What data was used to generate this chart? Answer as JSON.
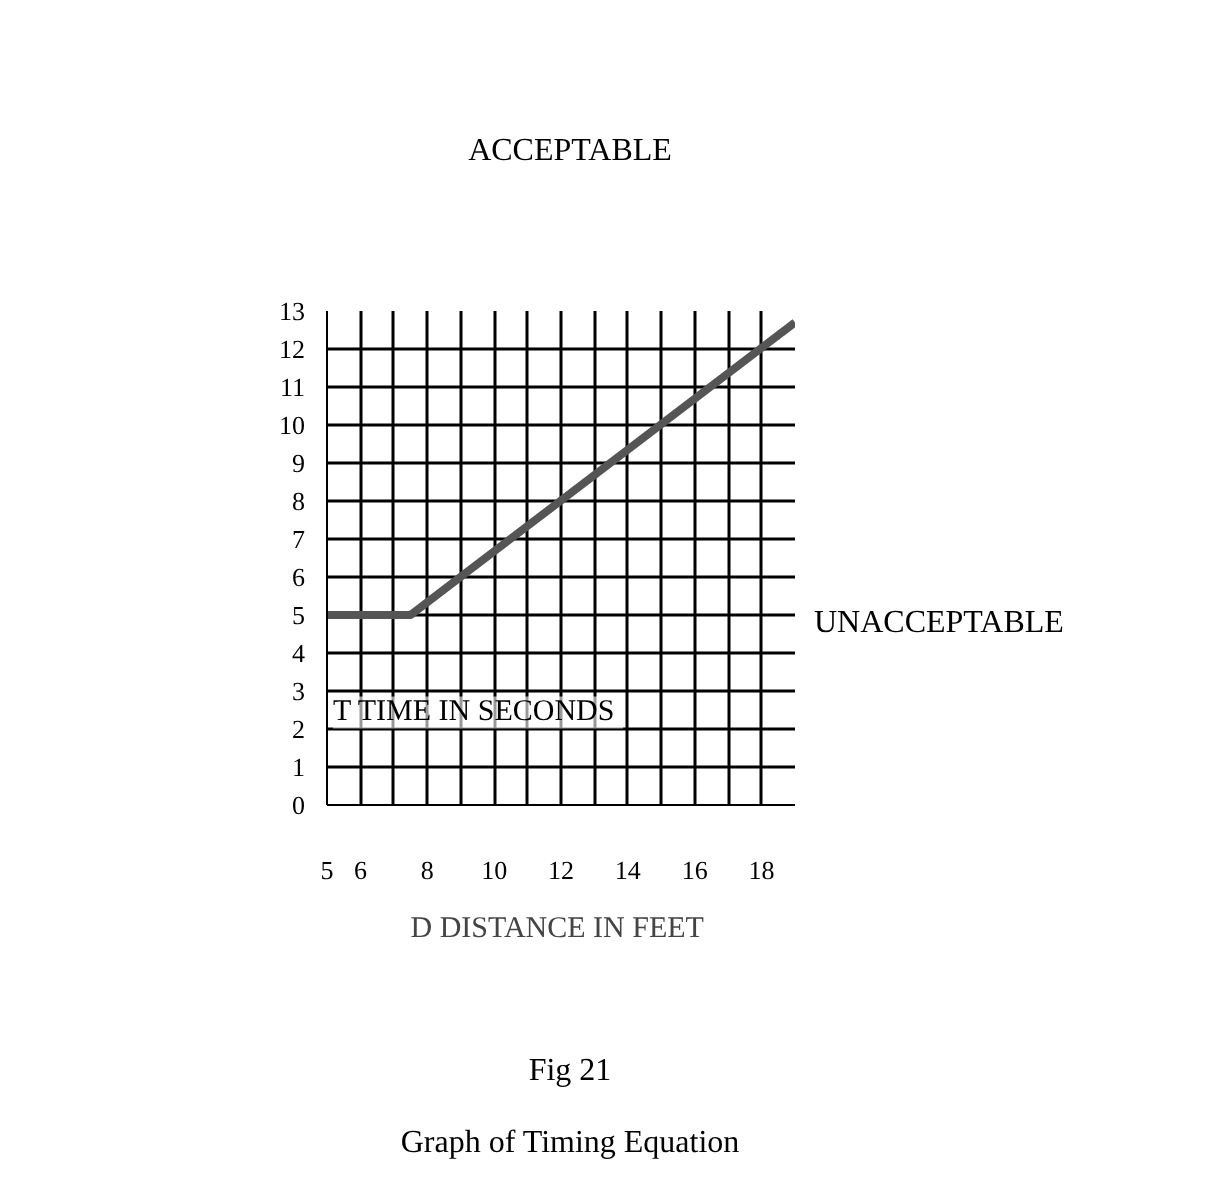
{
  "chart_data": {
    "type": "line",
    "title": "Fig 21",
    "subtitle": "Graph of Timing Equation",
    "xlabel": "D  DISTANCE IN FEET",
    "ylabel": "T  TIME IN SECONDS",
    "annotations": [
      "ACCEPTABLE",
      "UNACCEPTABLE"
    ],
    "x": [
      5,
      7.5,
      19
    ],
    "series": [
      {
        "color": "#555555",
        "values": [
          5,
          5,
          12.7
        ]
      }
    ],
    "xlim": [
      5,
      19
    ],
    "xticks": [
      5,
      6,
      {
        "value": 7,
        "label": null
      },
      8,
      {
        "value": 9,
        "label": null
      },
      10,
      {
        "value": 11,
        "label": null
      },
      12,
      {
        "value": 13,
        "label": null
      },
      14,
      {
        "value": 15,
        "label": null
      },
      16,
      {
        "value": 17,
        "label": null
      },
      18
    ],
    "ylim": [
      0,
      13
    ],
    "yticks": [
      0,
      1,
      2,
      3,
      4,
      5,
      6,
      7,
      8,
      9,
      10,
      11,
      12,
      13
    ],
    "grid": true
  }
}
